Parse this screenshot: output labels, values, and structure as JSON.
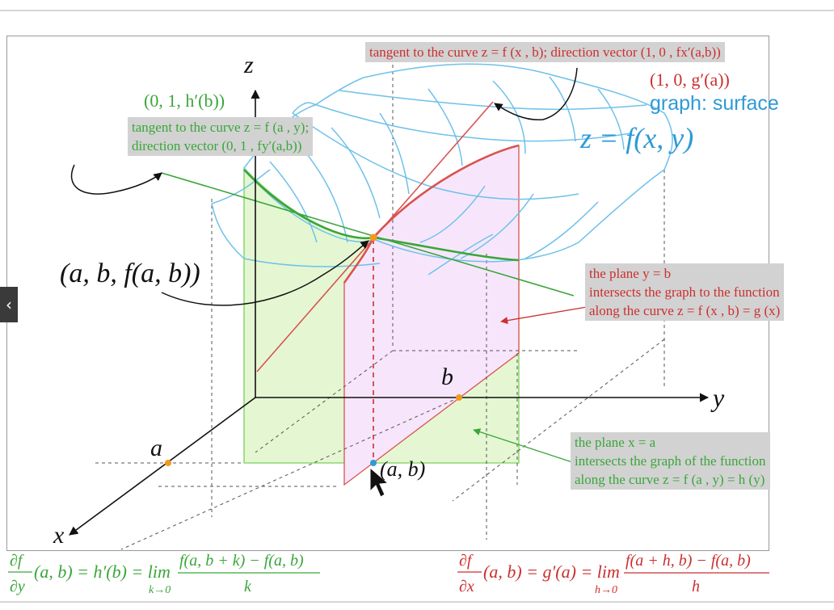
{
  "axes": {
    "z": "z",
    "y": "y",
    "x": "x"
  },
  "points": {
    "a": "a",
    "b": "b",
    "ab": "(a, b)",
    "abf": "(a, b, f(a, b))"
  },
  "labels": {
    "h_vector": "(0, 1, h′(b))",
    "g_vector": "(1, 0, g′(a))",
    "graph_surface": "graph: surface",
    "surface_eq": "z = f(x, y)"
  },
  "boxes": {
    "tangent_x": "tangent to the curve z = f (x , b); direction vector (1, 0 , fx′(a,b))",
    "tangent_y": [
      "tangent to the curve z = f (a , y);",
      "direction vector (0, 1 , fy′(a,b))"
    ],
    "plane_y": [
      "the plane y = b",
      "intersects the graph to the function",
      "along the curve z = f (x , b) = g (x)"
    ],
    "plane_x": [
      "the plane x = a",
      "intersects the graph of the function",
      "along the curve z = f (a , y) = h (y)"
    ]
  },
  "formulas": {
    "partial_y": {
      "num": "∂f",
      "den": "∂y",
      "mid": "(a, b) = h′(b) = lim",
      "lim_sub": "k→0",
      "frac_num": "f(a, b + k) − f(a, b)",
      "frac_den": "k"
    },
    "partial_x": {
      "num": "∂f",
      "den": "∂x",
      "mid": "(a, b) = g′(a) = lim",
      "lim_sub": "h→0",
      "frac_num": "f(a + h, b) − f(a, b)",
      "frac_den": "h"
    }
  },
  "colors": {
    "red": "#cc2f2f",
    "green": "#3aa63a",
    "blue": "#2e9ad6",
    "surface": "#6ec1ea",
    "green_fill": "#e4f7d2",
    "pink_fill": "#f7e6fb"
  }
}
